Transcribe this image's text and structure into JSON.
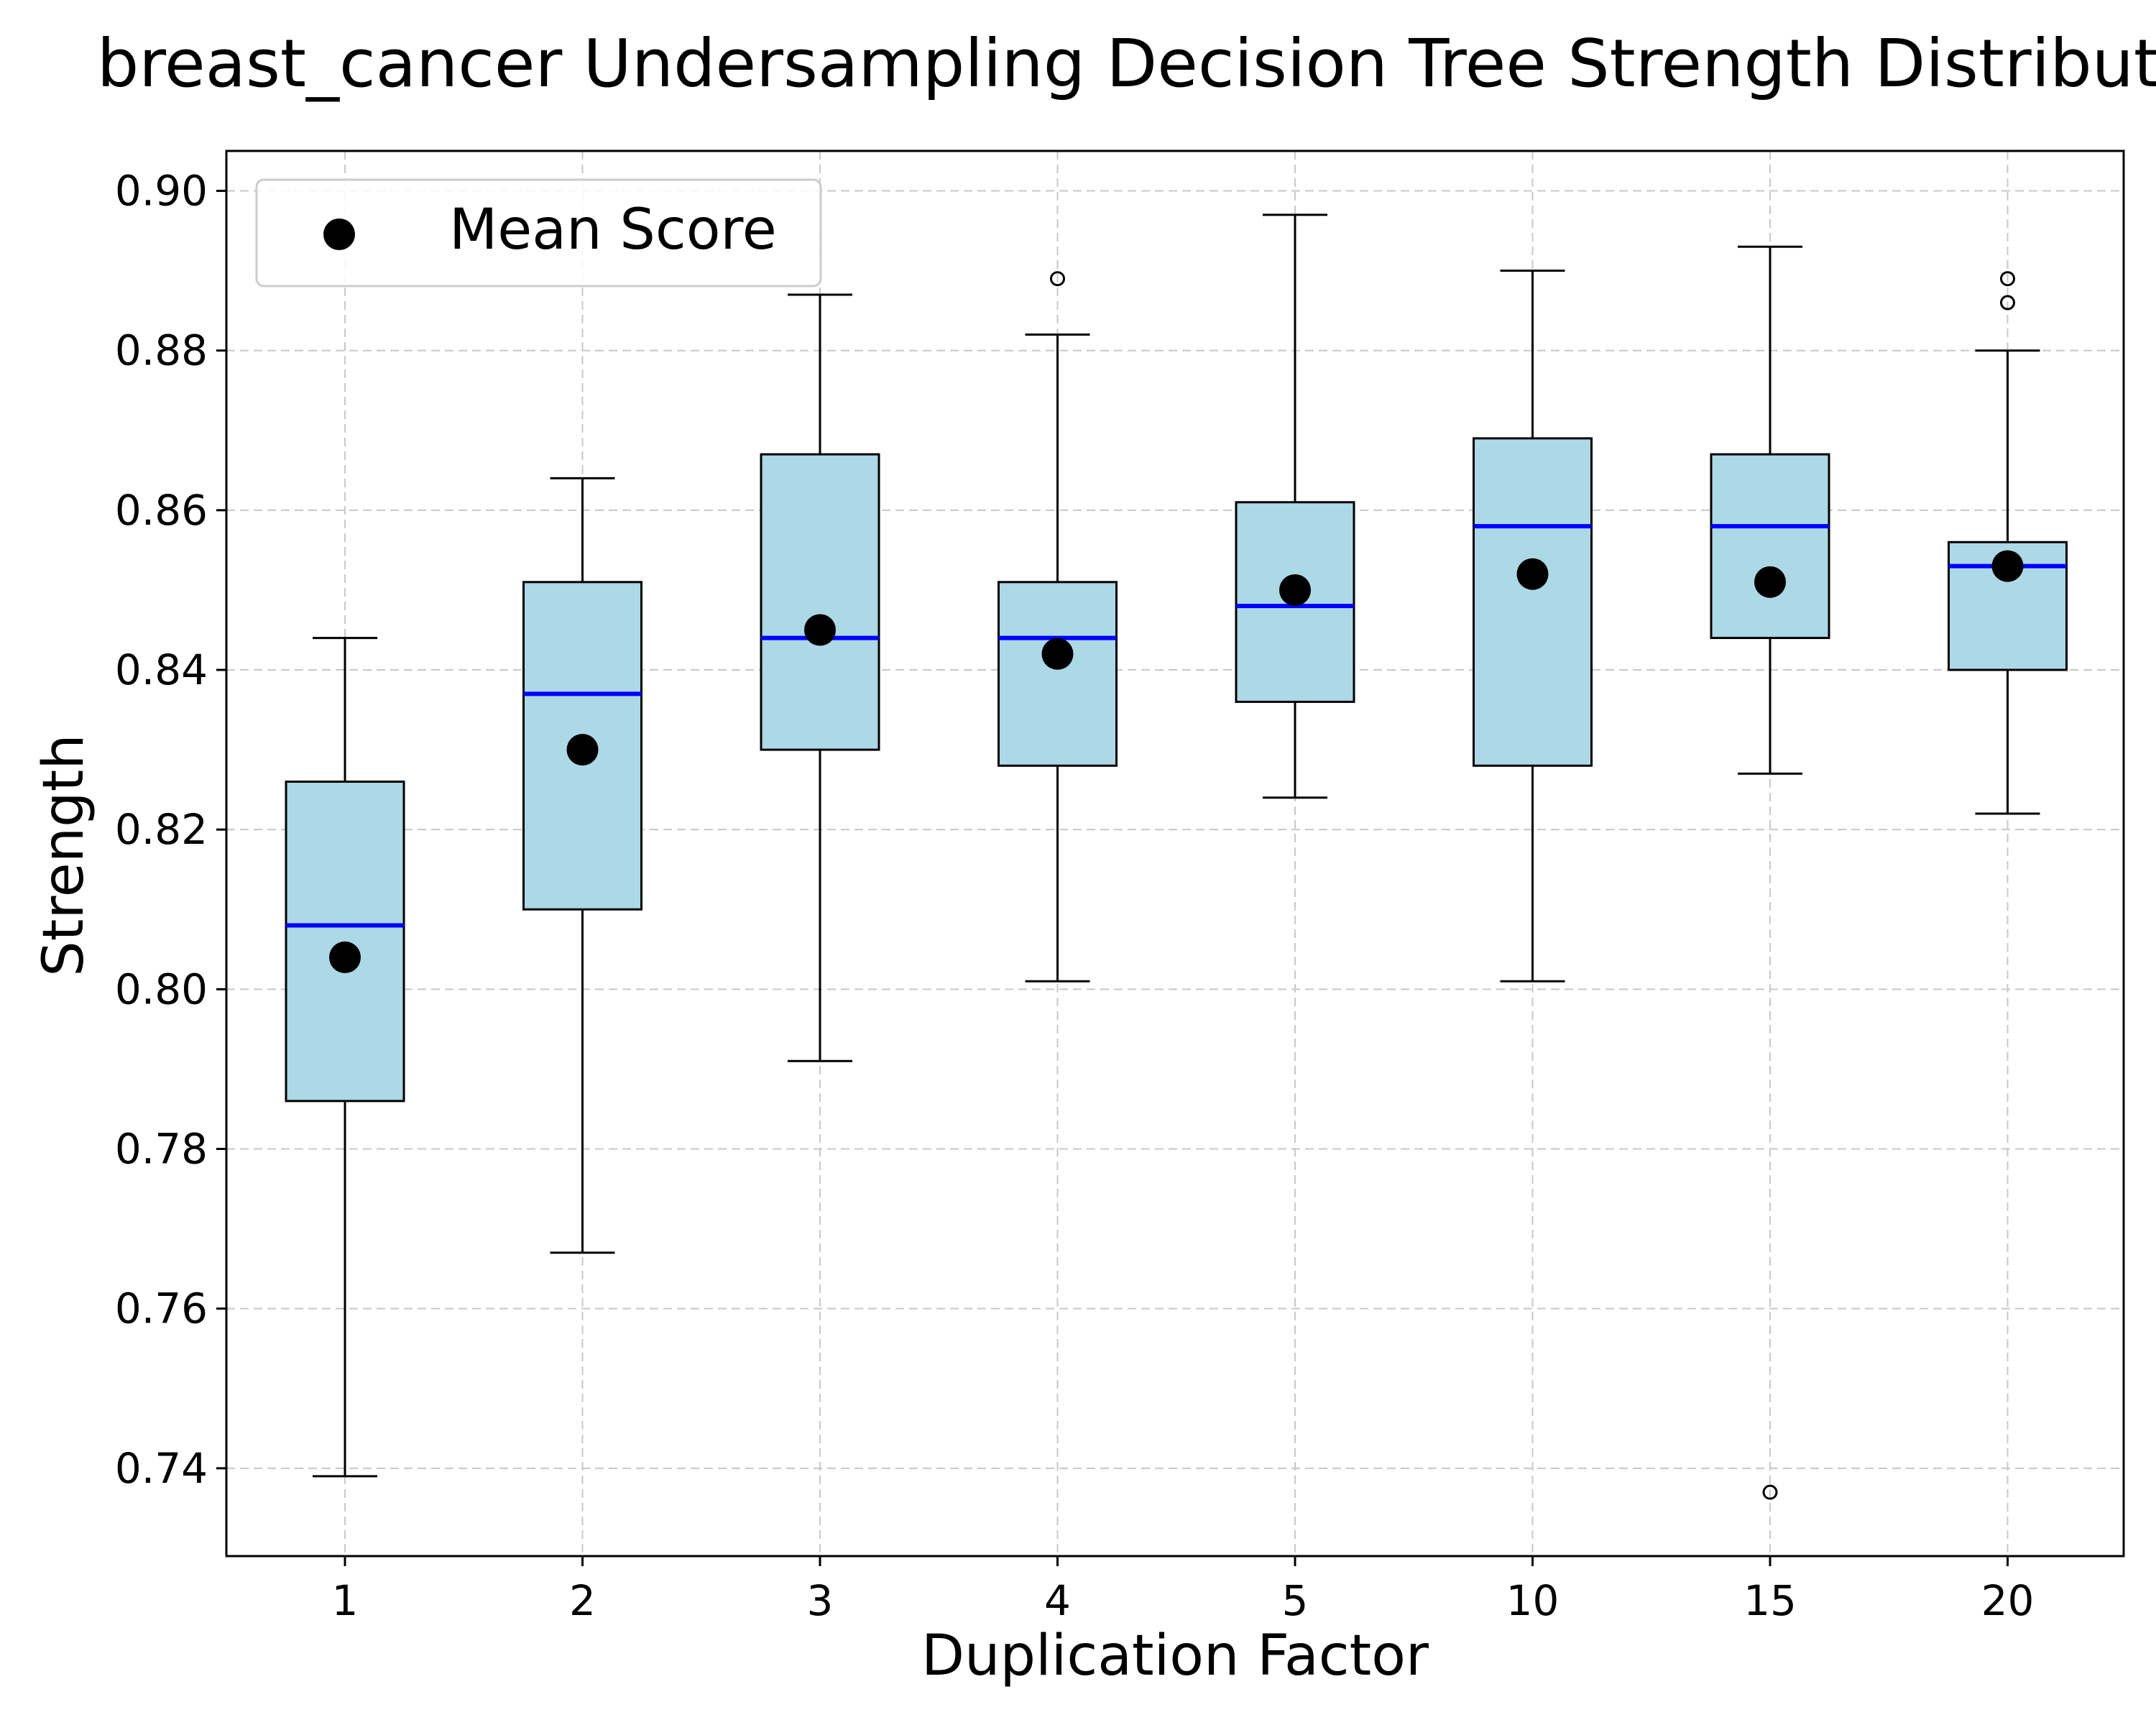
{
  "chart_data": {
    "type": "box",
    "title": "breast_cancer Undersampling Decision Tree Strength Distribution",
    "xlabel": "Duplication Factor",
    "ylabel": "Strength",
    "ylim": [
      0.729,
      0.905
    ],
    "yticks": [
      "0.74",
      "0.76",
      "0.78",
      "0.80",
      "0.82",
      "0.84",
      "0.86",
      "0.88",
      "0.90"
    ],
    "grid": true,
    "legend": {
      "position": "top-left",
      "entries": [
        "Mean Score"
      ]
    },
    "categories": [
      "1",
      "2",
      "3",
      "4",
      "5",
      "10",
      "15",
      "20"
    ],
    "boxes": [
      {
        "category": "1",
        "whisker_low": 0.739,
        "q1": 0.786,
        "median": 0.808,
        "q3": 0.826,
        "whisker_high": 0.844,
        "mean": 0.804,
        "outliers": []
      },
      {
        "category": "2",
        "whisker_low": 0.767,
        "q1": 0.81,
        "median": 0.837,
        "q3": 0.851,
        "whisker_high": 0.864,
        "mean": 0.83,
        "outliers": []
      },
      {
        "category": "3",
        "whisker_low": 0.791,
        "q1": 0.83,
        "median": 0.844,
        "q3": 0.867,
        "whisker_high": 0.887,
        "mean": 0.845,
        "outliers": []
      },
      {
        "category": "4",
        "whisker_low": 0.801,
        "q1": 0.828,
        "median": 0.844,
        "q3": 0.851,
        "whisker_high": 0.882,
        "mean": 0.842,
        "outliers": [
          0.889
        ]
      },
      {
        "category": "5",
        "whisker_low": 0.824,
        "q1": 0.836,
        "median": 0.848,
        "q3": 0.861,
        "whisker_high": 0.897,
        "mean": 0.85,
        "outliers": []
      },
      {
        "category": "10",
        "whisker_low": 0.801,
        "q1": 0.828,
        "median": 0.858,
        "q3": 0.869,
        "whisker_high": 0.89,
        "mean": 0.852,
        "outliers": []
      },
      {
        "category": "15",
        "whisker_low": 0.827,
        "q1": 0.844,
        "median": 0.858,
        "q3": 0.867,
        "whisker_high": 0.893,
        "mean": 0.851,
        "outliers": [
          0.737
        ]
      },
      {
        "category": "20",
        "whisker_low": 0.822,
        "q1": 0.84,
        "median": 0.853,
        "q3": 0.856,
        "whisker_high": 0.88,
        "mean": 0.853,
        "outliers": [
          0.886,
          0.889
        ]
      }
    ],
    "colors": {
      "box_fill": "#add8e6",
      "median": "#0000ff",
      "mean_marker": "#000000",
      "grid": "#c8c8c8"
    }
  }
}
